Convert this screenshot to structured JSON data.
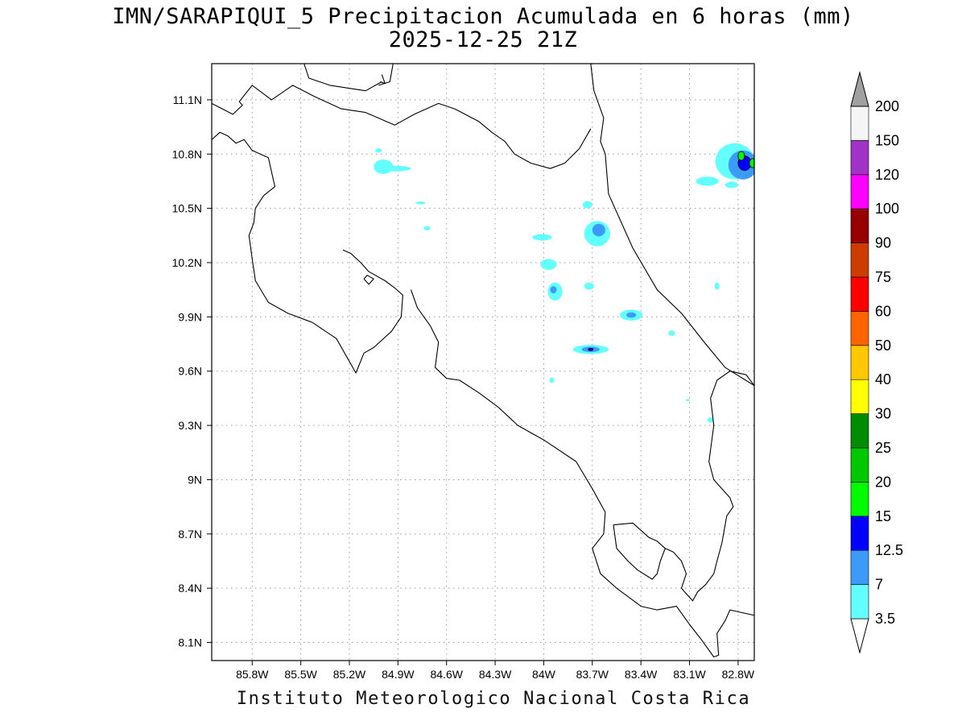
{
  "title": {
    "line1": "IMN/SARAPIQUI_5 Precipitacion Acumulada en 6 horas (mm)",
    "line2": "2025-12-25 21Z"
  },
  "credit": "Instituto Meteorologico Nacional Costa Rica",
  "map": {
    "lon_range": [
      -86.05,
      -82.7
    ],
    "lat_range": [
      8.0,
      11.3
    ],
    "lon_ticks": [
      -85.8,
      -85.5,
      -85.2,
      -84.9,
      -84.6,
      -84.3,
      -84.0,
      -83.7,
      -83.4,
      -83.1,
      -82.8
    ],
    "lon_tick_labels": [
      "85.8W",
      "85.5W",
      "85.2W",
      "84.9W",
      "84.6W",
      "84.3W",
      "84W",
      "83.7W",
      "83.4W",
      "83.1W",
      "82.8W"
    ],
    "lat_ticks": [
      8.1,
      8.4,
      8.7,
      9.0,
      9.3,
      9.6,
      9.9,
      10.2,
      10.5,
      10.8,
      11.1
    ],
    "lat_tick_labels": [
      "8.1N",
      "8.4N",
      "8.7N",
      "9N",
      "9.3N",
      "9.6N",
      "9.9N",
      "10.2N",
      "10.5N",
      "10.8N",
      "11.1N"
    ],
    "grid": true,
    "coastline_color": "#000000"
  },
  "colorbar": {
    "levels": [
      "3.5",
      "7",
      "12.5",
      "15",
      "20",
      "25",
      "30",
      "40",
      "50",
      "60",
      "75",
      "90",
      "100",
      "120",
      "150",
      "200"
    ],
    "colors": [
      "#63ffff",
      "#3c9bf9",
      "#0000ff",
      "#00fa00",
      "#00c800",
      "#008c00",
      "#ffff00",
      "#ffc800",
      "#ff6400",
      "#ff0000",
      "#cd3c00",
      "#960000",
      "#ff00ff",
      "#a032c8",
      "#f5f5f5",
      "#a0a0a0"
    ]
  },
  "precip_cells": [
    {
      "lon": -84.99,
      "lat": 10.73,
      "rx": 0.06,
      "ry": 0.04,
      "level": 0
    },
    {
      "lon": -84.91,
      "lat": 10.72,
      "rx": 0.09,
      "ry": 0.015,
      "level": 0
    },
    {
      "lon": -85.02,
      "lat": 10.82,
      "rx": 0.02,
      "ry": 0.012,
      "level": 0
    },
    {
      "lon": -84.76,
      "lat": 10.53,
      "rx": 0.03,
      "ry": 0.008,
      "level": 0
    },
    {
      "lon": -84.72,
      "lat": 10.39,
      "rx": 0.02,
      "ry": 0.012,
      "level": 0
    },
    {
      "lon": -84.01,
      "lat": 10.34,
      "rx": 0.06,
      "ry": 0.018,
      "level": 0
    },
    {
      "lon": -83.97,
      "lat": 10.19,
      "rx": 0.05,
      "ry": 0.03,
      "level": 0
    },
    {
      "lon": -83.93,
      "lat": 10.04,
      "rx": 0.045,
      "ry": 0.05,
      "level": 0
    },
    {
      "lon": -83.94,
      "lat": 10.05,
      "rx": 0.02,
      "ry": 0.02,
      "level": 1
    },
    {
      "lon": -83.73,
      "lat": 10.52,
      "rx": 0.03,
      "ry": 0.02,
      "level": 0
    },
    {
      "lon": -83.67,
      "lat": 10.36,
      "rx": 0.08,
      "ry": 0.07,
      "level": 0
    },
    {
      "lon": -83.66,
      "lat": 10.38,
      "rx": 0.04,
      "ry": 0.035,
      "level": 1
    },
    {
      "lon": -83.72,
      "lat": 10.07,
      "rx": 0.03,
      "ry": 0.02,
      "level": 0
    },
    {
      "lon": -83.46,
      "lat": 9.91,
      "rx": 0.07,
      "ry": 0.03,
      "level": 0
    },
    {
      "lon": -83.46,
      "lat": 9.91,
      "rx": 0.03,
      "ry": 0.015,
      "level": 1
    },
    {
      "lon": -83.21,
      "lat": 9.81,
      "rx": 0.02,
      "ry": 0.015,
      "level": 0
    },
    {
      "lon": -83.71,
      "lat": 9.72,
      "rx": 0.11,
      "ry": 0.025,
      "level": 0
    },
    {
      "lon": -83.71,
      "lat": 9.72,
      "rx": 0.055,
      "ry": 0.015,
      "level": 1
    },
    {
      "lon": -83.71,
      "lat": 9.72,
      "rx": 0.015,
      "ry": 0.006,
      "level": 2
    },
    {
      "lon": -83.95,
      "lat": 9.55,
      "rx": 0.015,
      "ry": 0.015,
      "level": 0
    },
    {
      "lon": -82.97,
      "lat": 9.33,
      "rx": 0.018,
      "ry": 0.015,
      "level": 0
    },
    {
      "lon": -83.11,
      "lat": 9.44,
      "rx": 0.012,
      "ry": 0.006,
      "level": 0
    },
    {
      "lon": -82.93,
      "lat": 10.07,
      "rx": 0.015,
      "ry": 0.02,
      "level": 0
    },
    {
      "lon": -82.99,
      "lat": 10.65,
      "rx": 0.07,
      "ry": 0.025,
      "level": 0
    },
    {
      "lon": -82.84,
      "lat": 10.63,
      "rx": 0.04,
      "ry": 0.018,
      "level": 0
    },
    {
      "lon": -82.87,
      "lat": 10.77,
      "rx": 0.06,
      "ry": 0.04,
      "level": 0
    },
    {
      "lon": -82.82,
      "lat": 10.76,
      "rx": 0.12,
      "ry": 0.1,
      "level": 0
    },
    {
      "lon": -82.77,
      "lat": 10.74,
      "rx": 0.09,
      "ry": 0.08,
      "level": 1
    },
    {
      "lon": -82.76,
      "lat": 10.75,
      "rx": 0.04,
      "ry": 0.04,
      "level": 2
    },
    {
      "lon": -82.78,
      "lat": 10.79,
      "rx": 0.02,
      "ry": 0.025,
      "level": 3
    },
    {
      "lon": -82.71,
      "lat": 10.75,
      "rx": 0.02,
      "ry": 0.025,
      "level": 3
    }
  ],
  "coastlines": [
    [
      [
        -86.05,
        11.08
      ],
      [
        -85.92,
        11.02
      ],
      [
        -85.86,
        11.07
      ],
      [
        -85.88,
        11.09
      ],
      [
        -85.8,
        11.18
      ],
      [
        -85.68,
        11.1
      ],
      [
        -85.55,
        11.18
      ],
      [
        -85.42,
        11.12
      ],
      [
        -85.25,
        11.05
      ],
      [
        -85.1,
        11.03
      ],
      [
        -84.92,
        10.96
      ],
      [
        -84.8,
        11.02
      ],
      [
        -84.65,
        11.08
      ],
      [
        -84.55,
        11.05
      ],
      [
        -84.4,
        10.98
      ],
      [
        -84.32,
        10.92
      ],
      [
        -84.24,
        10.87
      ],
      [
        -84.18,
        10.8
      ],
      [
        -84.08,
        10.75
      ],
      [
        -83.96,
        10.72
      ],
      [
        -83.87,
        10.75
      ],
      [
        -83.78,
        10.83
      ],
      [
        -83.71,
        10.94
      ]
    ],
    [
      [
        -83.71,
        11.3
      ],
      [
        -83.69,
        11.15
      ],
      [
        -83.63,
        11.0
      ],
      [
        -83.65,
        10.87
      ],
      [
        -83.62,
        10.8
      ],
      [
        -83.6,
        10.58
      ],
      [
        -83.45,
        10.28
      ],
      [
        -83.3,
        10.05
      ],
      [
        -83.15,
        9.92
      ],
      [
        -83.0,
        9.75
      ],
      [
        -82.88,
        9.62
      ],
      [
        -82.7,
        9.52
      ]
    ],
    [
      [
        -85.48,
        11.3
      ],
      [
        -85.45,
        11.22
      ],
      [
        -85.32,
        11.18
      ],
      [
        -85.1,
        11.15
      ],
      [
        -85.0,
        11.2
      ]
    ],
    [
      [
        -84.93,
        11.3
      ],
      [
        -84.95,
        11.2
      ],
      [
        -85.02,
        11.18
      ]
    ],
    [
      [
        -85.01,
        11.2
      ],
      [
        -84.98,
        11.19
      ],
      [
        -85.0,
        11.24
      ]
    ],
    [
      [
        -86.05,
        10.88
      ],
      [
        -86.0,
        10.92
      ],
      [
        -85.95,
        10.9
      ],
      [
        -85.9,
        10.86
      ],
      [
        -85.85,
        10.88
      ],
      [
        -85.8,
        10.82
      ],
      [
        -85.7,
        10.78
      ],
      [
        -85.68,
        10.7
      ],
      [
        -85.66,
        10.62
      ],
      [
        -85.73,
        10.57
      ],
      [
        -85.78,
        10.5
      ],
      [
        -85.79,
        10.42
      ],
      [
        -85.82,
        10.35
      ],
      [
        -85.8,
        10.22
      ],
      [
        -85.78,
        10.1
      ],
      [
        -85.7,
        9.98
      ],
      [
        -85.58,
        9.92
      ],
      [
        -85.43,
        9.87
      ],
      [
        -85.28,
        9.78
      ],
      [
        -85.16,
        9.59
      ],
      [
        -85.11,
        9.7
      ],
      [
        -85.05,
        9.73
      ],
      [
        -84.94,
        9.82
      ],
      [
        -84.88,
        9.9
      ],
      [
        -84.87,
        10.02
      ],
      [
        -84.92,
        10.06
      ],
      [
        -84.98,
        10.1
      ],
      [
        -85.08,
        10.15
      ],
      [
        -85.13,
        10.2
      ],
      [
        -85.19,
        10.25
      ],
      [
        -85.24,
        10.27
      ]
    ],
    [
      [
        -84.82,
        10.05
      ],
      [
        -84.78,
        9.95
      ],
      [
        -84.7,
        9.85
      ],
      [
        -84.65,
        9.76
      ],
      [
        -84.67,
        9.62
      ],
      [
        -84.6,
        9.56
      ],
      [
        -84.52,
        9.55
      ],
      [
        -84.4,
        9.48
      ],
      [
        -84.28,
        9.4
      ],
      [
        -84.16,
        9.3
      ],
      [
        -84.0,
        9.22
      ],
      [
        -83.8,
        9.1
      ],
      [
        -83.7,
        8.95
      ],
      [
        -83.62,
        8.82
      ],
      [
        -83.63,
        8.7
      ],
      [
        -83.7,
        8.62
      ],
      [
        -83.65,
        8.48
      ],
      [
        -83.55,
        8.4
      ],
      [
        -83.4,
        8.3
      ],
      [
        -83.3,
        8.28
      ],
      [
        -83.18,
        8.3
      ],
      [
        -83.1,
        8.2
      ],
      [
        -83.03,
        8.12
      ],
      [
        -82.95,
        8.02
      ],
      [
        -82.92,
        8.03
      ],
      [
        -82.93,
        8.15
      ],
      [
        -82.88,
        8.22
      ],
      [
        -82.85,
        8.28
      ],
      [
        -82.7,
        8.25
      ]
    ],
    [
      [
        -83.57,
        8.75
      ],
      [
        -83.45,
        8.76
      ],
      [
        -83.35,
        8.68
      ],
      [
        -83.3,
        8.66
      ],
      [
        -83.25,
        8.62
      ],
      [
        -83.28,
        8.55
      ],
      [
        -83.3,
        8.48
      ],
      [
        -83.33,
        8.45
      ],
      [
        -83.42,
        8.5
      ],
      [
        -83.48,
        8.55
      ],
      [
        -83.55,
        8.62
      ],
      [
        -83.57,
        8.75
      ]
    ],
    [
      [
        -83.25,
        8.62
      ],
      [
        -83.2,
        8.6
      ],
      [
        -83.15,
        8.55
      ],
      [
        -83.12,
        8.48
      ],
      [
        -83.15,
        8.4
      ],
      [
        -83.08,
        8.33
      ],
      [
        -83.05,
        8.38
      ],
      [
        -83.0,
        8.42
      ],
      [
        -82.95,
        8.48
      ],
      [
        -82.93,
        8.55
      ],
      [
        -82.9,
        8.65
      ],
      [
        -82.87,
        8.8
      ],
      [
        -82.83,
        8.85
      ],
      [
        -82.85,
        8.9
      ],
      [
        -82.9,
        8.95
      ],
      [
        -82.95,
        9.0
      ],
      [
        -82.98,
        9.1
      ],
      [
        -82.95,
        9.3
      ],
      [
        -82.97,
        9.45
      ],
      [
        -82.93,
        9.55
      ],
      [
        -82.85,
        9.6
      ],
      [
        -82.75,
        9.58
      ],
      [
        -82.7,
        9.52
      ]
    ],
    [
      [
        -85.11,
        10.11
      ],
      [
        -85.09,
        10.13
      ],
      [
        -85.05,
        10.11
      ],
      [
        -85.08,
        10.08
      ],
      [
        -85.11,
        10.11
      ]
    ]
  ]
}
